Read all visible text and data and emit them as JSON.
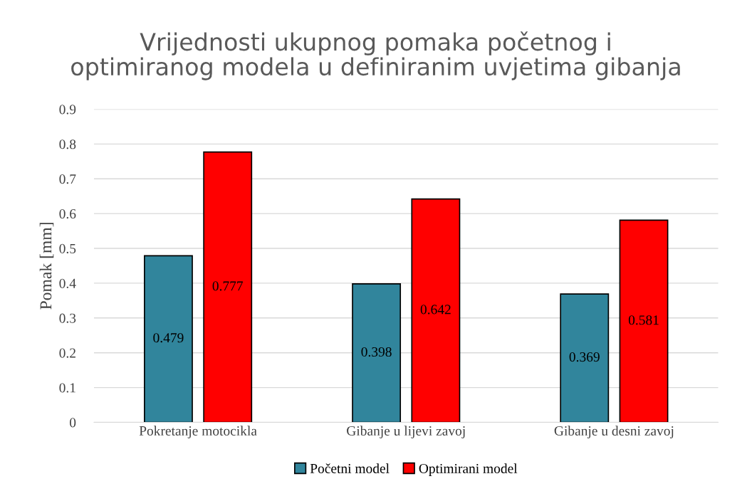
{
  "chart_data": {
    "type": "bar",
    "title": "Vrijednosti ukupnog pomaka početnog i\noptimiranog modela u definiranim uvjetima gibanja",
    "ylabel": "Pomak [mm]",
    "categories": [
      "Pokretanje motocikla",
      "Gibanje u lijevi zavoj",
      "Gibanje u desni zavoj"
    ],
    "series": [
      {
        "name": "Početni model",
        "color": "#31859c",
        "values": [
          0.479,
          0.398,
          0.369
        ]
      },
      {
        "name": "Optimirani model",
        "color": "#ff0000",
        "values": [
          0.777,
          0.642,
          0.581
        ]
      }
    ],
    "ylim": [
      0,
      0.9
    ],
    "yticks": [
      0,
      0.1,
      0.2,
      0.3,
      0.4,
      0.5,
      0.6,
      0.7,
      0.8,
      0.9
    ],
    "grid": "y",
    "legend": "bottom",
    "data_labels": true
  }
}
